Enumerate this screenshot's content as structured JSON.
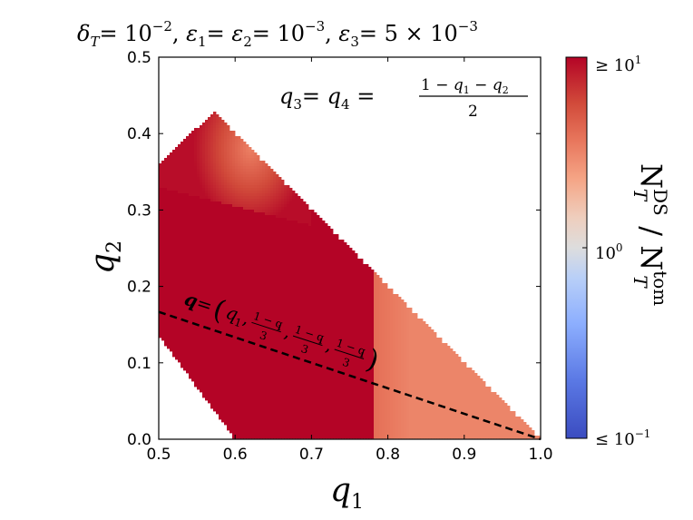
{
  "chart_data": {
    "type": "heatmap",
    "title": "δT = 10⁻², ε1 = ε2 = 10⁻³, ε3 = 5 × 10⁻³",
    "title_parts": {
      "delta_T": "δ",
      "delta_T_sub": "T",
      "delta_T_val": "= 10",
      "delta_T_exp": "−2",
      "eps12": "ε",
      "eps1_sub": "1",
      "eq1": "= ε",
      "eps2_sub": "2",
      "eps12_val": "= 10",
      "eps12_exp": "−3",
      "eps3": "ε",
      "eps3_sub": "3",
      "eps3_val": "= 5 × 10",
      "eps3_exp": "−3"
    },
    "xlabel": "q1",
    "xlabel_main": "q",
    "xlabel_sub": "1",
    "ylabel": "q2",
    "ylabel_main": "q",
    "ylabel_sub": "2",
    "xlim": [
      0.5,
      1.0
    ],
    "ylim": [
      0.0,
      0.5
    ],
    "xticks": [
      "0.5",
      "0.6",
      "0.7",
      "0.8",
      "0.9",
      "1.0"
    ],
    "xtick_values": [
      0.5,
      0.6,
      0.7,
      0.8,
      0.9,
      1.0
    ],
    "yticks": [
      "0.0",
      "0.1",
      "0.2",
      "0.3",
      "0.4",
      "0.5"
    ],
    "ytick_values": [
      0.0,
      0.1,
      0.2,
      0.3,
      0.4,
      0.5
    ],
    "annotation_box": {
      "lhs": "q",
      "lhs_sub3": "3",
      "mid": "= q",
      "mid_sub4": "4",
      "eq": "=",
      "numerator": "1 − q",
      "num_sub1": "1",
      "minus": " − q",
      "num_sub2": "2",
      "denominator": "2"
    },
    "dashed_line": {
      "label": "q = (q1, (1−q1)/3, (1−q1)/3, (1−q1)/3)",
      "points": [
        [
          0.5,
          0.1667
        ],
        [
          1.0,
          0.0
        ]
      ]
    },
    "colorbar": {
      "label": "N_T^DS / N_T^tom",
      "label_main1": "N",
      "label_sup1": "DS",
      "label_sub1": "T",
      "label_slash": " / ",
      "label_main2": "N",
      "label_sup2": "tom",
      "label_sub2": "T",
      "scale": "log",
      "range": [
        0.1,
        10
      ],
      "ticks": [
        "≥ 10",
        "10",
        "≤ 10"
      ],
      "tick_exps": [
        "1",
        "0",
        "−1"
      ],
      "colormap": "coolwarm",
      "colors": {
        "low": "#3b4cc0",
        "mid": "#dddddd",
        "high": "#b40426"
      }
    },
    "region_color_saturated": "#b40426",
    "region_color_neutral": "#dcdcdc"
  }
}
